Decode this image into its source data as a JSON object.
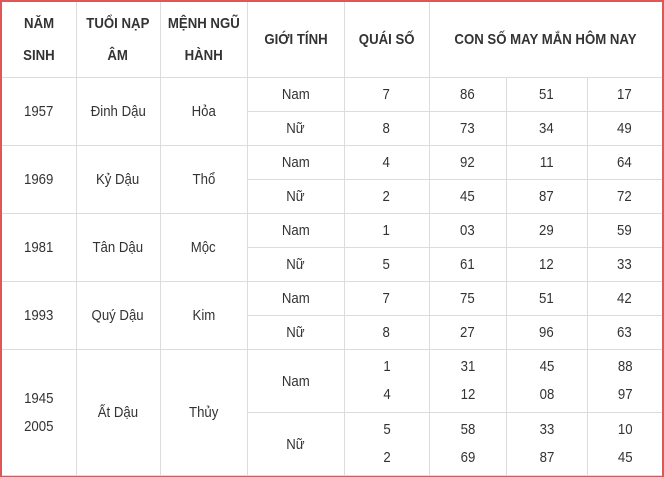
{
  "header": {
    "nam_sinh": [
      "NĂM",
      "SINH"
    ],
    "tuoi_nap_am": [
      "TUỔI NẠP",
      "ÂM"
    ],
    "menh": [
      "MỆNH NGŨ",
      "HÀNH"
    ],
    "gioi_tinh": "GIỚI TÍNH",
    "quai_so": "QUÁI SỐ",
    "con_so": "CON SỐ MAY MẮN HÔM NAY"
  },
  "groups": [
    {
      "year": "1957",
      "tuoi": "Đinh Dậu",
      "menh": "Hỏa",
      "rows": [
        {
          "gender": "Nam",
          "quai": "7",
          "nums": [
            "86",
            "51",
            "17"
          ]
        },
        {
          "gender": "Nữ",
          "quai": "8",
          "nums": [
            "73",
            "34",
            "49"
          ]
        }
      ]
    },
    {
      "year": "1969",
      "tuoi": "Kỷ Dậu",
      "menh": "Thổ",
      "rows": [
        {
          "gender": "Nam",
          "quai": "4",
          "nums": [
            "92",
            "11",
            "64"
          ]
        },
        {
          "gender": "Nữ",
          "quai": "2",
          "nums": [
            "45",
            "87",
            "72"
          ]
        }
      ]
    },
    {
      "year": "1981",
      "tuoi": "Tân Dậu",
      "menh": "Mộc",
      "rows": [
        {
          "gender": "Nam",
          "quai": "1",
          "nums": [
            "03",
            "29",
            "59"
          ]
        },
        {
          "gender": "Nữ",
          "quai": "5",
          "nums": [
            "61",
            "12",
            "33"
          ]
        }
      ]
    },
    {
      "year": "1993",
      "tuoi": "Quý Dậu",
      "menh": "Kim",
      "rows": [
        {
          "gender": "Nam",
          "quai": "7",
          "nums": [
            "75",
            "51",
            "42"
          ]
        },
        {
          "gender": "Nữ",
          "quai": "8",
          "nums": [
            "27",
            "96",
            "63"
          ]
        }
      ]
    },
    {
      "year": [
        "1945",
        "2005"
      ],
      "tuoi": "Ất Dậu",
      "menh": "Thủy",
      "rows": [
        {
          "gender": "Nam",
          "quai": [
            "1",
            "4"
          ],
          "nums": [
            [
              "31",
              "12"
            ],
            [
              "45",
              "08"
            ],
            [
              "88",
              "97"
            ]
          ]
        },
        {
          "gender": "Nữ",
          "quai": [
            "5",
            "2"
          ],
          "nums": [
            [
              "58",
              "69"
            ],
            [
              "33",
              "87"
            ],
            [
              "10",
              "45"
            ]
          ]
        }
      ]
    }
  ],
  "colors": {
    "border": "#e05555",
    "grid": "#dcdcdc",
    "text": "#333333"
  }
}
